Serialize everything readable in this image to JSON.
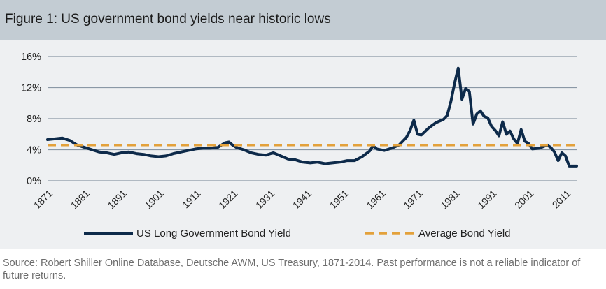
{
  "title": "Figure 1: US government bond yields near historic lows",
  "source_note": "Source: Robert Shiller Online Database, Deutsche AWM, US Treasury, 1871-2014. Past performance is not a reliable indicator of future returns.",
  "colors": {
    "title_bg": "#c3ccd3",
    "plot_bg": "#eef0f2",
    "series": "#0d2a4a",
    "average": "#e3a13b",
    "grid": "#8a98a6"
  },
  "chart_data": {
    "type": "line",
    "title": "Figure 1: US government bond yields near historic lows",
    "xlabel": "",
    "ylabel": "",
    "xlim": [
      1871,
      2014
    ],
    "ylim": [
      0,
      16
    ],
    "y_ticks": [
      0,
      4,
      8,
      12,
      16
    ],
    "y_tick_labels": [
      "0%",
      "4%",
      "8%",
      "12%",
      "16%"
    ],
    "x_ticks": [
      1871,
      1881,
      1891,
      1901,
      1911,
      1921,
      1931,
      1941,
      1951,
      1961,
      1971,
      1981,
      1991,
      2001,
      2011
    ],
    "x_tick_labels": [
      "1871",
      "1881",
      "1891",
      "1901",
      "1911",
      "1921",
      "1931",
      "1941",
      "1951",
      "1961",
      "1971",
      "1981",
      "1991",
      "2001",
      "2011"
    ],
    "grid": "horizontal",
    "legend_position": "bottom",
    "series": [
      {
        "name": "US Long Government Bond Yield",
        "style": "solid",
        "color": "#0d2a4a",
        "x": [
          1871,
          1873,
          1875,
          1877,
          1879,
          1881,
          1883,
          1885,
          1887,
          1889,
          1891,
          1893,
          1895,
          1897,
          1899,
          1901,
          1903,
          1905,
          1907,
          1909,
          1911,
          1913,
          1915,
          1917,
          1919,
          1920,
          1921,
          1922,
          1924,
          1926,
          1928,
          1930,
          1932,
          1934,
          1936,
          1938,
          1940,
          1942,
          1944,
          1946,
          1948,
          1950,
          1952,
          1954,
          1956,
          1958,
          1959,
          1960,
          1962,
          1964,
          1966,
          1968,
          1969,
          1970,
          1971,
          1972,
          1974,
          1976,
          1978,
          1979,
          1980,
          1981,
          1982,
          1983,
          1984,
          1985,
          1986,
          1987,
          1988,
          1989,
          1990,
          1991,
          1992,
          1993,
          1994,
          1995,
          1996,
          1997,
          1998,
          1999,
          2000,
          2001,
          2002,
          2004,
          2006,
          2007,
          2008,
          2009,
          2010,
          2011,
          2012,
          2013,
          2014
        ],
        "y": [
          5.3,
          5.4,
          5.5,
          5.2,
          4.6,
          4.3,
          4.0,
          3.7,
          3.6,
          3.4,
          3.6,
          3.7,
          3.5,
          3.4,
          3.2,
          3.1,
          3.2,
          3.5,
          3.7,
          3.9,
          4.1,
          4.2,
          4.2,
          4.3,
          4.9,
          5.0,
          4.6,
          4.3,
          4.0,
          3.6,
          3.4,
          3.3,
          3.6,
          3.2,
          2.8,
          2.7,
          2.4,
          2.3,
          2.4,
          2.2,
          2.3,
          2.4,
          2.6,
          2.6,
          3.1,
          3.8,
          4.5,
          4.1,
          3.9,
          4.2,
          4.6,
          5.6,
          6.5,
          7.8,
          6.0,
          5.9,
          6.8,
          7.5,
          7.9,
          8.4,
          10.2,
          12.5,
          14.5,
          10.5,
          11.9,
          11.5,
          7.3,
          8.6,
          9.0,
          8.3,
          8.1,
          7.0,
          6.5,
          5.8,
          7.6,
          6.0,
          6.4,
          5.4,
          4.8,
          6.6,
          5.1,
          4.8,
          4.1,
          4.2,
          4.6,
          4.3,
          3.7,
          2.6,
          3.6,
          3.2,
          1.9,
          1.9,
          1.9
        ]
      },
      {
        "name": "Average Bond Yield",
        "style": "dashed",
        "color": "#e3a13b",
        "x": [
          1871,
          2014
        ],
        "y": [
          4.6,
          4.6
        ]
      }
    ]
  }
}
